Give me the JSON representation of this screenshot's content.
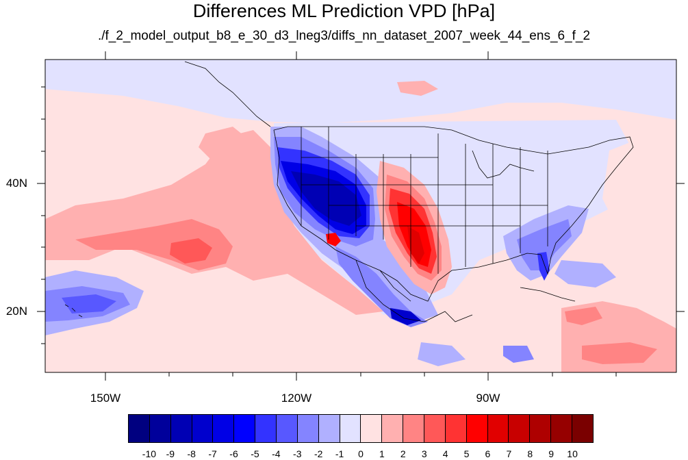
{
  "title": "Differences ML Prediction VPD [hPa]",
  "subtitle": "./f_2_model_output_b8_e_30_d3_lneg3/diffs_nn_dataset_2007_week_44_ens_6_f_2",
  "x_ticks": [
    "150W",
    "120W",
    "90W"
  ],
  "y_ticks": [
    "40N",
    "20N"
  ],
  "colorbar": {
    "labels": [
      "-10",
      "-9",
      "-8",
      "-7",
      "-6",
      "-5",
      "-4",
      "-3",
      "-2",
      "-1",
      "0",
      "1",
      "2",
      "3",
      "4",
      "5",
      "6",
      "7",
      "8",
      "9",
      "10"
    ],
    "colors": [
      "#000080",
      "#00009b",
      "#0000b4",
      "#0000cd",
      "#0000e6",
      "#0000ff",
      "#3333ff",
      "#5858ff",
      "#8484ff",
      "#b0b0ff",
      "#e2e2ff",
      "#ffe2e2",
      "#ffb0b0",
      "#ff8484",
      "#ff5858",
      "#ff3333",
      "#ff0000",
      "#e10000",
      "#c80000",
      "#ae0000",
      "#960000",
      "#7a0000"
    ]
  },
  "chart_data": {
    "type": "heatmap",
    "title": "Differences ML Prediction VPD [hPa]",
    "subtitle": "./f_2_model_output_b8_e_30_d3_lneg3/diffs_nn_dataset_2007_week_44_ens_6_f_2",
    "lon_range": [
      -160,
      -60
    ],
    "lat_range": [
      11,
      60
    ],
    "x_ticks": [
      "150W",
      "120W",
      "90W"
    ],
    "y_ticks": [
      "40N",
      "20N"
    ],
    "value_range": [
      -10,
      10
    ],
    "features": [
      {
        "region": "California / Great Basin / Southwest US",
        "approx_value": -8
      },
      {
        "region": "Pacific Northwest",
        "approx_value": -4
      },
      {
        "region": "Southern Plains (Texas/Oklahoma)",
        "approx_value": 6
      },
      {
        "region": "Central subtropical Pacific",
        "approx_value": 3
      },
      {
        "region": "Northeast Pacific offshore",
        "approx_value": 2
      },
      {
        "region": "Florida / Southeast US coast",
        "approx_value": -4
      },
      {
        "region": "Hawaii / tropical Pacific",
        "approx_value": -3
      },
      {
        "region": "Mexico Pacific coast",
        "approx_value": -6
      },
      {
        "region": "Tropical Atlantic / Caribbean",
        "approx_value": 3
      }
    ]
  }
}
